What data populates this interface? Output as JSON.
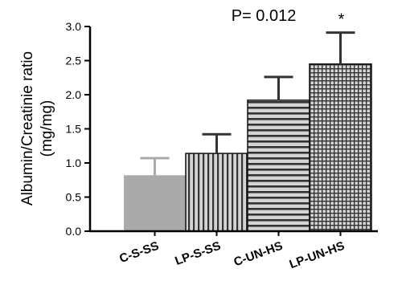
{
  "chart_data": {
    "type": "bar",
    "categories": [
      "C-S-SS",
      "LP-S-SS",
      "C-UN-HS",
      "LP-UN-HS"
    ],
    "values": [
      0.82,
      1.14,
      1.92,
      2.45
    ],
    "errors": [
      0.25,
      0.28,
      0.34,
      0.46
    ],
    "annotations": [
      "",
      "",
      "",
      "*"
    ],
    "ylabel_line1": "Albumin/Creatinie ratio",
    "ylabel_line2": "(mg/mg)",
    "ylim": [
      0.0,
      3.0
    ],
    "yticks": [
      "0.0",
      "0.5",
      "1.0",
      "1.5",
      "2.0",
      "2.5",
      "3.0"
    ],
    "p_value_text": "P= 0.012",
    "bar_styles": [
      "solid-gray",
      "vertical-stripes",
      "horizontal-stripes",
      "grid"
    ],
    "colors": {
      "solid": "#aaaaaa",
      "pattern_bg": "#d4d4d4",
      "pattern_line": "#333333",
      "axis": "#000000"
    },
    "grid": false
  }
}
